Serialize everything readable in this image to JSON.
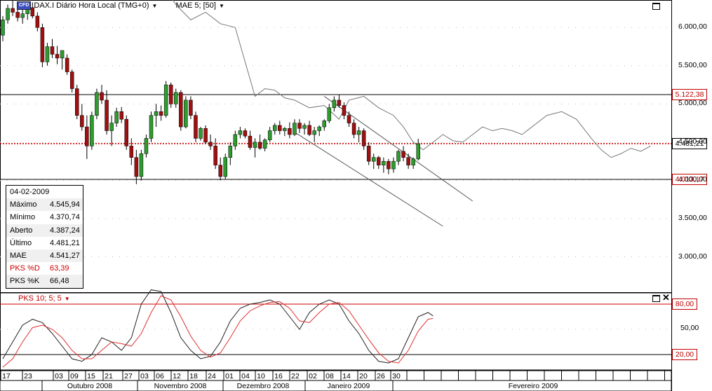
{
  "header": {
    "badge": "CFD",
    "instrument": "DAX.I Diário Hora Local (TMG+0)",
    "indicator": "MAE 5; [50]"
  },
  "info_box": {
    "date": "04-02-2009",
    "rows": [
      {
        "label": "Máximo",
        "value": "4.545,94",
        "color": "normal"
      },
      {
        "label": "Mínimo",
        "value": "4.370,74",
        "color": "normal"
      },
      {
        "label": "Aberto",
        "value": "4.387,24",
        "color": "normal"
      },
      {
        "label": "Último",
        "value": "4.481,21",
        "color": "normal"
      },
      {
        "label": "MAE",
        "value": "4.541,27",
        "color": "normal"
      },
      {
        "label": "PKS %D",
        "value": "63,39",
        "color": "red"
      },
      {
        "label": "PKS %K",
        "value": "66,48",
        "color": "normal"
      }
    ]
  },
  "oscillator": {
    "label": "PKS 10; 5; 5"
  },
  "colors": {
    "up": "#2e9c2e",
    "down": "#a01010",
    "red": "#cc0000",
    "ma": "#777777"
  },
  "chart_data": {
    "type": "candlestick",
    "price_axis": {
      "ticks": [
        "6.000,00",
        "5.500,00",
        "5.000,00",
        "4.500,00",
        "4.000,00",
        "3.500,00",
        "3.000,00"
      ],
      "values": [
        6000,
        5500,
        5000,
        4500,
        4000,
        3500,
        3000
      ],
      "ylim": [
        2700,
        6400
      ]
    },
    "price_levels": [
      {
        "label": "5.122,38",
        "value": 5122.38,
        "style": "solid"
      },
      {
        "label": "4.481,21",
        "value": 4481.21,
        "style": "dotted"
      },
      {
        "label": "4.013,17",
        "value": 4013.17,
        "style": "solid"
      }
    ],
    "osc_axis": {
      "ticks": [
        "80,00",
        "50,00",
        "20,00"
      ],
      "values": [
        80,
        50,
        20
      ],
      "ylim": [
        0,
        100
      ]
    },
    "date_ticks": [
      "17",
      "23",
      "03",
      "09",
      "15",
      "21",
      "27",
      "03",
      "06",
      "12",
      "18",
      "24",
      "01",
      "04",
      "10",
      "16",
      "22",
      "02",
      "08",
      "14",
      "20",
      "26",
      "30"
    ],
    "months": [
      "Outubro 2008",
      "Novembro 2008",
      "Dezembro 2008",
      "Janeiro 2009",
      "Fevereiro 2009"
    ],
    "candles": [
      [
        5900,
        6150,
        5820,
        6100
      ],
      [
        6100,
        6300,
        6050,
        6250
      ],
      [
        6250,
        6350,
        6150,
        6200
      ],
      [
        6200,
        6320,
        6080,
        6130
      ],
      [
        6130,
        6250,
        6050,
        6180
      ],
      [
        6180,
        6300,
        6100,
        6260
      ],
      [
        6260,
        6330,
        6120,
        6150
      ],
      [
        6150,
        6200,
        5950,
        6000
      ],
      [
        6000,
        6050,
        5480,
        5550
      ],
      [
        5550,
        5800,
        5500,
        5750
      ],
      [
        5750,
        5850,
        5600,
        5650
      ],
      [
        5650,
        5760,
        5520,
        5600
      ],
      [
        5600,
        5700,
        5450,
        5700
      ],
      [
        5600,
        5650,
        5380,
        5420
      ],
      [
        5420,
        5450,
        5150,
        5200
      ],
      [
        5200,
        5250,
        4800,
        4850
      ],
      [
        4850,
        5000,
        4650,
        4700
      ],
      [
        4700,
        4850,
        4280,
        4450
      ],
      [
        4450,
        4900,
        4400,
        4850
      ],
      [
        4850,
        5200,
        4800,
        5150
      ],
      [
        5150,
        5250,
        5000,
        5050
      ],
      [
        5050,
        5180,
        4600,
        4650
      ],
      [
        4650,
        4850,
        4450,
        4750
      ],
      [
        4750,
        4950,
        4700,
        4900
      ],
      [
        4900,
        4960,
        4750,
        4800
      ],
      [
        4800,
        4850,
        4400,
        4450
      ],
      [
        4450,
        4550,
        4200,
        4300
      ],
      [
        4300,
        4400,
        3950,
        4050
      ],
      [
        4050,
        4400,
        4000,
        4350
      ],
      [
        4350,
        4600,
        4300,
        4550
      ],
      [
        4550,
        4900,
        4500,
        4850
      ],
      [
        4850,
        5000,
        4700,
        4900
      ],
      [
        4900,
        4980,
        4780,
        4850
      ],
      [
        4850,
        5300,
        4820,
        5250
      ],
      [
        5250,
        5280,
        4950,
        5000
      ],
      [
        5000,
        5200,
        4950,
        5150
      ],
      [
        5150,
        5180,
        4650,
        4700
      ],
      [
        4700,
        5100,
        4680,
        5050
      ],
      [
        5050,
        5100,
        4800,
        4850
      ],
      [
        4850,
        4900,
        4500,
        4550
      ],
      [
        4550,
        4700,
        4520,
        4680
      ],
      [
        4680,
        4720,
        4480,
        4500
      ],
      [
        4500,
        4600,
        4400,
        4450
      ],
      [
        4450,
        4550,
        4150,
        4200
      ],
      [
        4200,
        4300,
        4000,
        4050
      ],
      [
        4050,
        4350,
        4020,
        4300
      ],
      [
        4300,
        4500,
        4200,
        4450
      ],
      [
        4450,
        4650,
        4400,
        4600
      ],
      [
        4600,
        4700,
        4550,
        4650
      ],
      [
        4650,
        4680,
        4550,
        4580
      ],
      [
        4580,
        4650,
        4400,
        4430
      ],
      [
        4430,
        4550,
        4300,
        4500
      ],
      [
        4500,
        4600,
        4400,
        4420
      ],
      [
        4420,
        4550,
        4380,
        4530
      ],
      [
        4530,
        4700,
        4500,
        4650
      ],
      [
        4650,
        4750,
        4600,
        4720
      ],
      [
        4720,
        4780,
        4600,
        4650
      ],
      [
        4650,
        4700,
        4580,
        4680
      ],
      [
        4680,
        4760,
        4550,
        4600
      ],
      [
        4600,
        4800,
        4580,
        4750
      ],
      [
        4750,
        4800,
        4620,
        4680
      ],
      [
        4680,
        4750,
        4600,
        4720
      ],
      [
        4720,
        4780,
        4580,
        4600
      ],
      [
        4600,
        4700,
        4500,
        4650
      ],
      [
        4650,
        4720,
        4580,
        4700
      ],
      [
        4700,
        4800,
        4650,
        4780
      ],
      [
        4780,
        5000,
        4750,
        4950
      ],
      [
        4950,
        5100,
        4900,
        5050
      ],
      [
        5050,
        5120,
        4950,
        4980
      ],
      [
        4980,
        5020,
        4800,
        4850
      ],
      [
        4850,
        4900,
        4700,
        4750
      ],
      [
        4750,
        4800,
        4550,
        4600
      ],
      [
        4600,
        4700,
        4500,
        4650
      ],
      [
        4650,
        4680,
        4400,
        4450
      ],
      [
        4450,
        4500,
        4200,
        4250
      ],
      [
        4250,
        4350,
        4150,
        4300
      ],
      [
        4300,
        4320,
        4150,
        4200
      ],
      [
        4200,
        4300,
        4100,
        4250
      ],
      [
        4250,
        4280,
        4080,
        4150
      ],
      [
        4150,
        4300,
        4100,
        4250
      ],
      [
        4250,
        4400,
        4200,
        4380
      ],
      [
        4380,
        4450,
        4250,
        4300
      ],
      [
        4300,
        4350,
        4150,
        4200
      ],
      [
        4200,
        4300,
        4150,
        4280
      ],
      [
        4280,
        4545,
        4260,
        4481
      ]
    ],
    "ma_line": [
      [
        0,
        7350
      ],
      [
        4,
        7400
      ],
      [
        8,
        7250
      ],
      [
        12,
        7150
      ],
      [
        16,
        7050
      ],
      [
        20,
        6900
      ],
      [
        24,
        6850
      ],
      [
        28,
        6950
      ],
      [
        32,
        6600
      ],
      [
        35,
        6300
      ],
      [
        38,
        6100
      ],
      [
        41,
        6200
      ],
      [
        44,
        6050
      ],
      [
        47,
        6000
      ],
      [
        49,
        5550
      ],
      [
        51,
        5100
      ],
      [
        53,
        5200
      ],
      [
        55,
        5180
      ],
      [
        57,
        5080
      ],
      [
        59,
        5050
      ],
      [
        62,
        4950
      ],
      [
        65,
        4980
      ],
      [
        68,
        4800
      ],
      [
        70,
        5050
      ],
      [
        73,
        5100
      ],
      [
        76,
        4950
      ],
      [
        79,
        4850
      ],
      [
        81,
        4700
      ],
      [
        83,
        4500
      ],
      [
        85,
        4400
      ],
      [
        87,
        4500
      ],
      [
        89,
        4600
      ],
      [
        91,
        4520
      ],
      [
        93,
        4500
      ],
      [
        95,
        4600
      ],
      [
        97,
        4700
      ],
      [
        99,
        4650
      ],
      [
        101,
        4680
      ],
      [
        103,
        4650
      ],
      [
        105,
        4600
      ],
      [
        107,
        4700
      ],
      [
        110,
        4850
      ],
      [
        113,
        4900
      ],
      [
        116,
        4800
      ],
      [
        119,
        4550
      ],
      [
        121,
        4400
      ],
      [
        123,
        4300
      ],
      [
        125,
        4350
      ],
      [
        127,
        4420
      ],
      [
        129,
        4380
      ],
      [
        131,
        4450
      ]
    ],
    "channel_lines": [
      [
        [
          65,
          5100
        ],
        [
          95,
          3730
        ]
      ],
      [
        [
          59,
          4630
        ],
        [
          89,
          3400
        ]
      ]
    ],
    "osc_k": [
      [
        0,
        15
      ],
      [
        2,
        35
      ],
      [
        4,
        55
      ],
      [
        6,
        62
      ],
      [
        8,
        58
      ],
      [
        10,
        45
      ],
      [
        12,
        30
      ],
      [
        14,
        15
      ],
      [
        16,
        12
      ],
      [
        18,
        20
      ],
      [
        20,
        40
      ],
      [
        22,
        35
      ],
      [
        24,
        25
      ],
      [
        26,
        40
      ],
      [
        28,
        80
      ],
      [
        30,
        97
      ],
      [
        32,
        95
      ],
      [
        34,
        70
      ],
      [
        36,
        40
      ],
      [
        38,
        25
      ],
      [
        40,
        15
      ],
      [
        42,
        18
      ],
      [
        44,
        35
      ],
      [
        46,
        60
      ],
      [
        48,
        75
      ],
      [
        50,
        80
      ],
      [
        52,
        82
      ],
      [
        54,
        85
      ],
      [
        56,
        80
      ],
      [
        58,
        65
      ],
      [
        60,
        50
      ],
      [
        62,
        70
      ],
      [
        64,
        80
      ],
      [
        66,
        85
      ],
      [
        68,
        80
      ],
      [
        70,
        60
      ],
      [
        72,
        45
      ],
      [
        74,
        25
      ],
      [
        76,
        12
      ],
      [
        78,
        10
      ],
      [
        80,
        15
      ],
      [
        82,
        40
      ],
      [
        84,
        65
      ],
      [
        86,
        70
      ],
      [
        87,
        66
      ]
    ],
    "osc_d": [
      [
        0,
        5
      ],
      [
        2,
        15
      ],
      [
        4,
        35
      ],
      [
        6,
        52
      ],
      [
        8,
        55
      ],
      [
        10,
        50
      ],
      [
        12,
        40
      ],
      [
        14,
        25
      ],
      [
        16,
        15
      ],
      [
        18,
        15
      ],
      [
        20,
        25
      ],
      [
        22,
        35
      ],
      [
        24,
        33
      ],
      [
        26,
        30
      ],
      [
        28,
        45
      ],
      [
        30,
        70
      ],
      [
        32,
        90
      ],
      [
        34,
        85
      ],
      [
        36,
        65
      ],
      [
        38,
        42
      ],
      [
        40,
        25
      ],
      [
        42,
        17
      ],
      [
        44,
        22
      ],
      [
        46,
        40
      ],
      [
        48,
        60
      ],
      [
        50,
        72
      ],
      [
        52,
        78
      ],
      [
        54,
        82
      ],
      [
        56,
        83
      ],
      [
        58,
        75
      ],
      [
        60,
        60
      ],
      [
        62,
        58
      ],
      [
        64,
        70
      ],
      [
        66,
        80
      ],
      [
        68,
        82
      ],
      [
        70,
        72
      ],
      [
        72,
        55
      ],
      [
        74,
        38
      ],
      [
        76,
        22
      ],
      [
        78,
        12
      ],
      [
        80,
        10
      ],
      [
        82,
        25
      ],
      [
        84,
        48
      ],
      [
        86,
        62
      ],
      [
        87,
        63
      ]
    ]
  }
}
